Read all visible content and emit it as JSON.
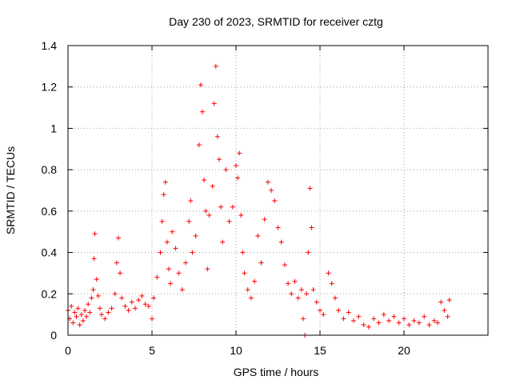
{
  "chart_data": {
    "type": "scatter",
    "title": "Day 230 of 2023, SRMTID for receiver cztg",
    "xlabel": "GPS time / hours",
    "ylabel": "SRMTID / TECUs",
    "xlim": [
      0,
      25
    ],
    "ylim": [
      0,
      1.4
    ],
    "xticks": [
      0,
      5,
      10,
      15,
      20
    ],
    "xtick_labels": [
      "0",
      "5",
      "10",
      "15",
      "20"
    ],
    "yticks": [
      0,
      0.2,
      0.4,
      0.6,
      0.8,
      1.0,
      1.2,
      1.4
    ],
    "ytick_labels": [
      "0",
      "0.2",
      "0.4",
      "0.6",
      "0.8",
      "1",
      "1.2",
      "1.4"
    ],
    "grid": true,
    "marker": "+",
    "color": "#ff0000",
    "series": [
      {
        "name": "SRMTID",
        "points": [
          [
            0.0,
            0.12
          ],
          [
            0.1,
            0.08
          ],
          [
            0.2,
            0.14
          ],
          [
            0.3,
            0.06
          ],
          [
            0.4,
            0.11
          ],
          [
            0.5,
            0.09
          ],
          [
            0.6,
            0.13
          ],
          [
            0.7,
            0.05
          ],
          [
            0.8,
            0.1
          ],
          [
            0.9,
            0.07
          ],
          [
            1.0,
            0.12
          ],
          [
            1.1,
            0.09
          ],
          [
            1.2,
            0.15
          ],
          [
            1.3,
            0.11
          ],
          [
            1.4,
            0.18
          ],
          [
            1.5,
            0.22
          ],
          [
            1.55,
            0.37
          ],
          [
            1.6,
            0.49
          ],
          [
            1.7,
            0.27
          ],
          [
            1.8,
            0.19
          ],
          [
            1.9,
            0.13
          ],
          [
            2.0,
            0.1
          ],
          [
            2.2,
            0.08
          ],
          [
            2.4,
            0.11
          ],
          [
            2.6,
            0.13
          ],
          [
            2.8,
            0.2
          ],
          [
            2.9,
            0.35
          ],
          [
            3.0,
            0.47
          ],
          [
            3.1,
            0.3
          ],
          [
            3.2,
            0.18
          ],
          [
            3.4,
            0.14
          ],
          [
            3.6,
            0.12
          ],
          [
            3.8,
            0.16
          ],
          [
            4.0,
            0.13
          ],
          [
            4.2,
            0.17
          ],
          [
            4.4,
            0.19
          ],
          [
            4.6,
            0.15
          ],
          [
            4.8,
            0.14
          ],
          [
            5.0,
            0.08
          ],
          [
            5.1,
            0.18
          ],
          [
            5.3,
            0.28
          ],
          [
            5.5,
            0.4
          ],
          [
            5.6,
            0.55
          ],
          [
            5.7,
            0.68
          ],
          [
            5.8,
            0.74
          ],
          [
            5.9,
            0.45
          ],
          [
            6.0,
            0.32
          ],
          [
            6.1,
            0.25
          ],
          [
            6.2,
            0.5
          ],
          [
            6.4,
            0.42
          ],
          [
            6.6,
            0.3
          ],
          [
            6.8,
            0.22
          ],
          [
            7.0,
            0.35
          ],
          [
            7.2,
            0.55
          ],
          [
            7.3,
            0.65
          ],
          [
            7.4,
            0.4
          ],
          [
            7.6,
            0.48
          ],
          [
            7.8,
            0.92
          ],
          [
            7.9,
            1.21
          ],
          [
            8.0,
            1.08
          ],
          [
            8.1,
            0.75
          ],
          [
            8.2,
            0.6
          ],
          [
            8.3,
            0.32
          ],
          [
            8.4,
            0.58
          ],
          [
            8.6,
            0.72
          ],
          [
            8.7,
            1.12
          ],
          [
            8.8,
            1.3
          ],
          [
            8.9,
            0.96
          ],
          [
            9.0,
            0.85
          ],
          [
            9.1,
            0.62
          ],
          [
            9.2,
            0.45
          ],
          [
            9.4,
            0.8
          ],
          [
            9.6,
            0.55
          ],
          [
            9.8,
            0.62
          ],
          [
            10.0,
            0.82
          ],
          [
            10.1,
            0.76
          ],
          [
            10.2,
            0.88
          ],
          [
            10.3,
            0.58
          ],
          [
            10.4,
            0.4
          ],
          [
            10.5,
            0.3
          ],
          [
            10.7,
            0.22
          ],
          [
            10.9,
            0.18
          ],
          [
            11.1,
            0.26
          ],
          [
            11.3,
            0.48
          ],
          [
            11.5,
            0.35
          ],
          [
            11.7,
            0.56
          ],
          [
            11.9,
            0.74
          ],
          [
            12.1,
            0.7
          ],
          [
            12.3,
            0.65
          ],
          [
            12.5,
            0.52
          ],
          [
            12.7,
            0.45
          ],
          [
            12.9,
            0.34
          ],
          [
            13.1,
            0.25
          ],
          [
            13.3,
            0.2
          ],
          [
            13.5,
            0.26
          ],
          [
            13.7,
            0.18
          ],
          [
            13.9,
            0.22
          ],
          [
            14.0,
            0.08
          ],
          [
            14.1,
            0.0
          ],
          [
            14.2,
            0.2
          ],
          [
            14.3,
            0.4
          ],
          [
            14.4,
            0.71
          ],
          [
            14.5,
            0.52
          ],
          [
            14.6,
            0.22
          ],
          [
            14.8,
            0.16
          ],
          [
            15.0,
            0.12
          ],
          [
            15.2,
            0.1
          ],
          [
            15.5,
            0.3
          ],
          [
            15.7,
            0.25
          ],
          [
            15.9,
            0.18
          ],
          [
            16.1,
            0.12
          ],
          [
            16.4,
            0.08
          ],
          [
            16.7,
            0.11
          ],
          [
            17.0,
            0.07
          ],
          [
            17.3,
            0.09
          ],
          [
            17.6,
            0.05
          ],
          [
            17.9,
            0.04
          ],
          [
            18.2,
            0.08
          ],
          [
            18.5,
            0.06
          ],
          [
            18.8,
            0.1
          ],
          [
            19.1,
            0.07
          ],
          [
            19.4,
            0.09
          ],
          [
            19.7,
            0.06
          ],
          [
            20.0,
            0.08
          ],
          [
            20.3,
            0.05
          ],
          [
            20.6,
            0.07
          ],
          [
            20.9,
            0.06
          ],
          [
            21.2,
            0.09
          ],
          [
            21.5,
            0.05
          ],
          [
            21.8,
            0.07
          ],
          [
            22.0,
            0.06
          ],
          [
            22.2,
            0.16
          ],
          [
            22.4,
            0.12
          ],
          [
            22.6,
            0.09
          ],
          [
            22.7,
            0.17
          ]
        ]
      }
    ]
  }
}
